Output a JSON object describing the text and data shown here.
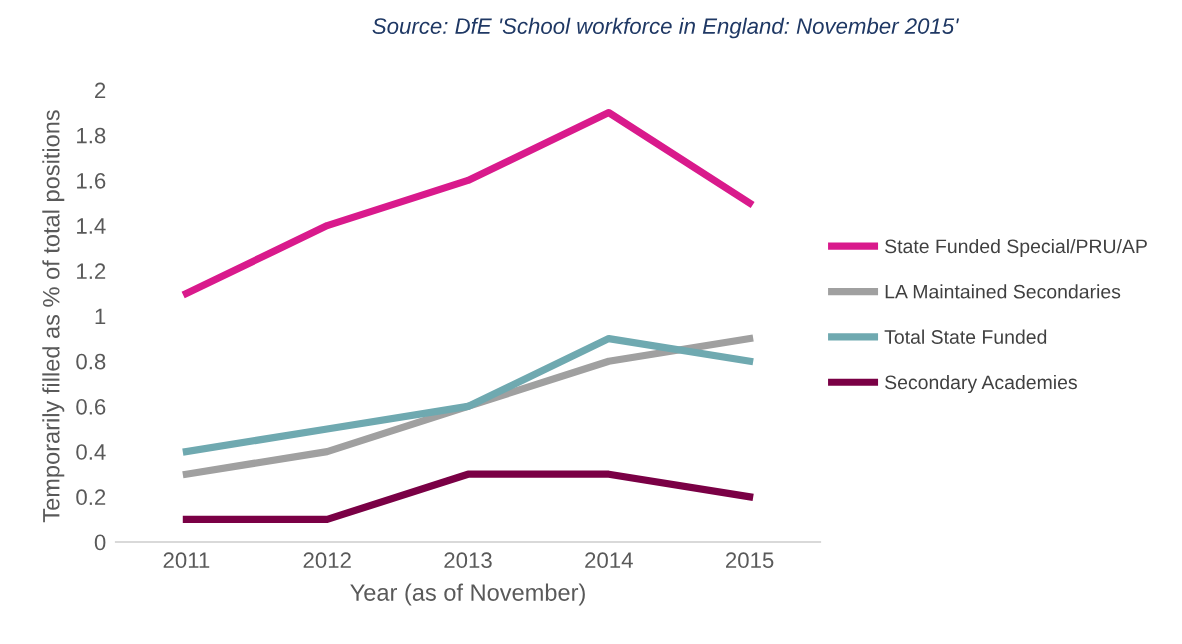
{
  "chart_data": {
    "type": "line",
    "title": "Source: DfE 'School workforce in England: November 2015'",
    "xlabel": "Year (as of November)",
    "ylabel": "Temporarily filled as % of total positions",
    "categories": [
      "2011",
      "2012",
      "2013",
      "2014",
      "2015"
    ],
    "series": [
      {
        "name": "State Funded Special/PRU/AP",
        "color": "#d91a8c",
        "values": [
          1.1,
          1.4,
          1.6,
          1.9,
          1.5
        ]
      },
      {
        "name": "LA Maintained Secondaries",
        "color": "#a0a0a0",
        "values": [
          0.3,
          0.4,
          0.6,
          0.8,
          0.9
        ]
      },
      {
        "name": "Total State Funded",
        "color": "#6fa9b0",
        "values": [
          0.4,
          0.5,
          0.6,
          0.9,
          0.8
        ]
      },
      {
        "name": "Secondary Academies",
        "color": "#7a0045",
        "values": [
          0.1,
          0.1,
          0.3,
          0.3,
          0.2
        ]
      }
    ],
    "ylim": [
      0,
      2
    ],
    "yticks": [
      0,
      0.2,
      0.4,
      0.6,
      0.8,
      1,
      1.2,
      1.4,
      1.6,
      1.8,
      2
    ],
    "grid": false,
    "legend": "right",
    "marker": "none",
    "line_style": "solid"
  }
}
